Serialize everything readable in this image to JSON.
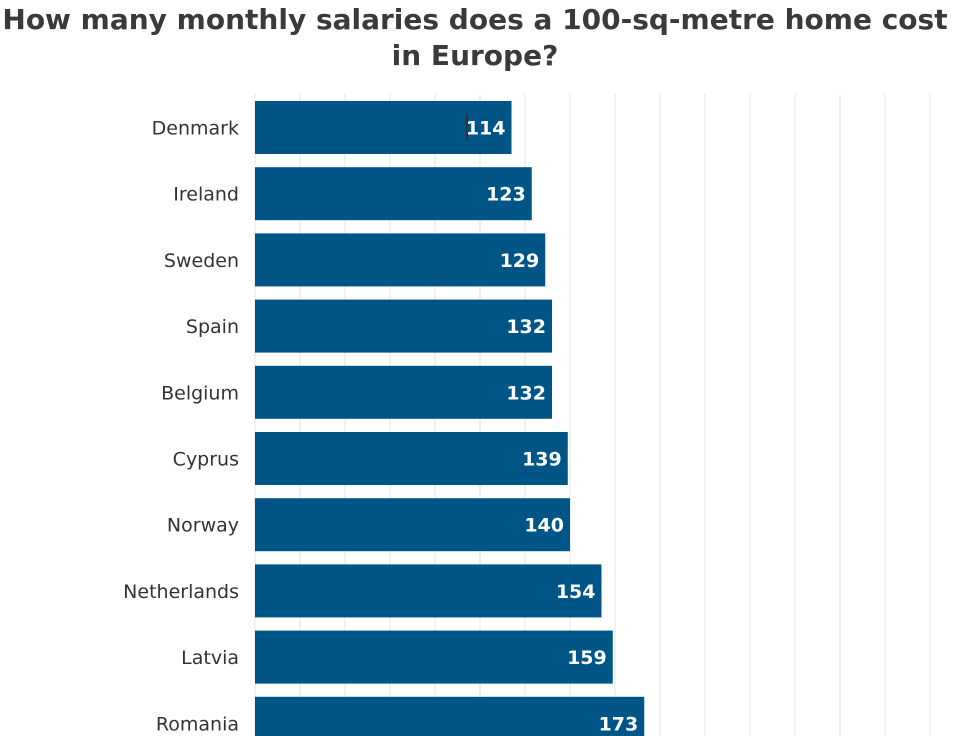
{
  "colors": {
    "bar": "#005587",
    "grid": "#e3e3e3",
    "title": "#3a3a3a",
    "label": "#333333",
    "value_label": "#ffffff"
  },
  "chart_data": {
    "type": "bar",
    "orientation": "horizontal",
    "title": "How many monthly salaries does a 100-sq-metre home cost in Europe?",
    "xlabel": "",
    "ylabel": "",
    "xlim": [
      0,
      300
    ],
    "grid": true,
    "categories": [
      "Denmark",
      "Ireland",
      "Sweden",
      "Spain",
      "Belgium",
      "Cyprus",
      "Norway",
      "Netherlands",
      "Latvia",
      "Romania"
    ],
    "values": [
      114,
      123,
      129,
      132,
      132,
      139,
      140,
      154,
      159,
      173
    ]
  }
}
